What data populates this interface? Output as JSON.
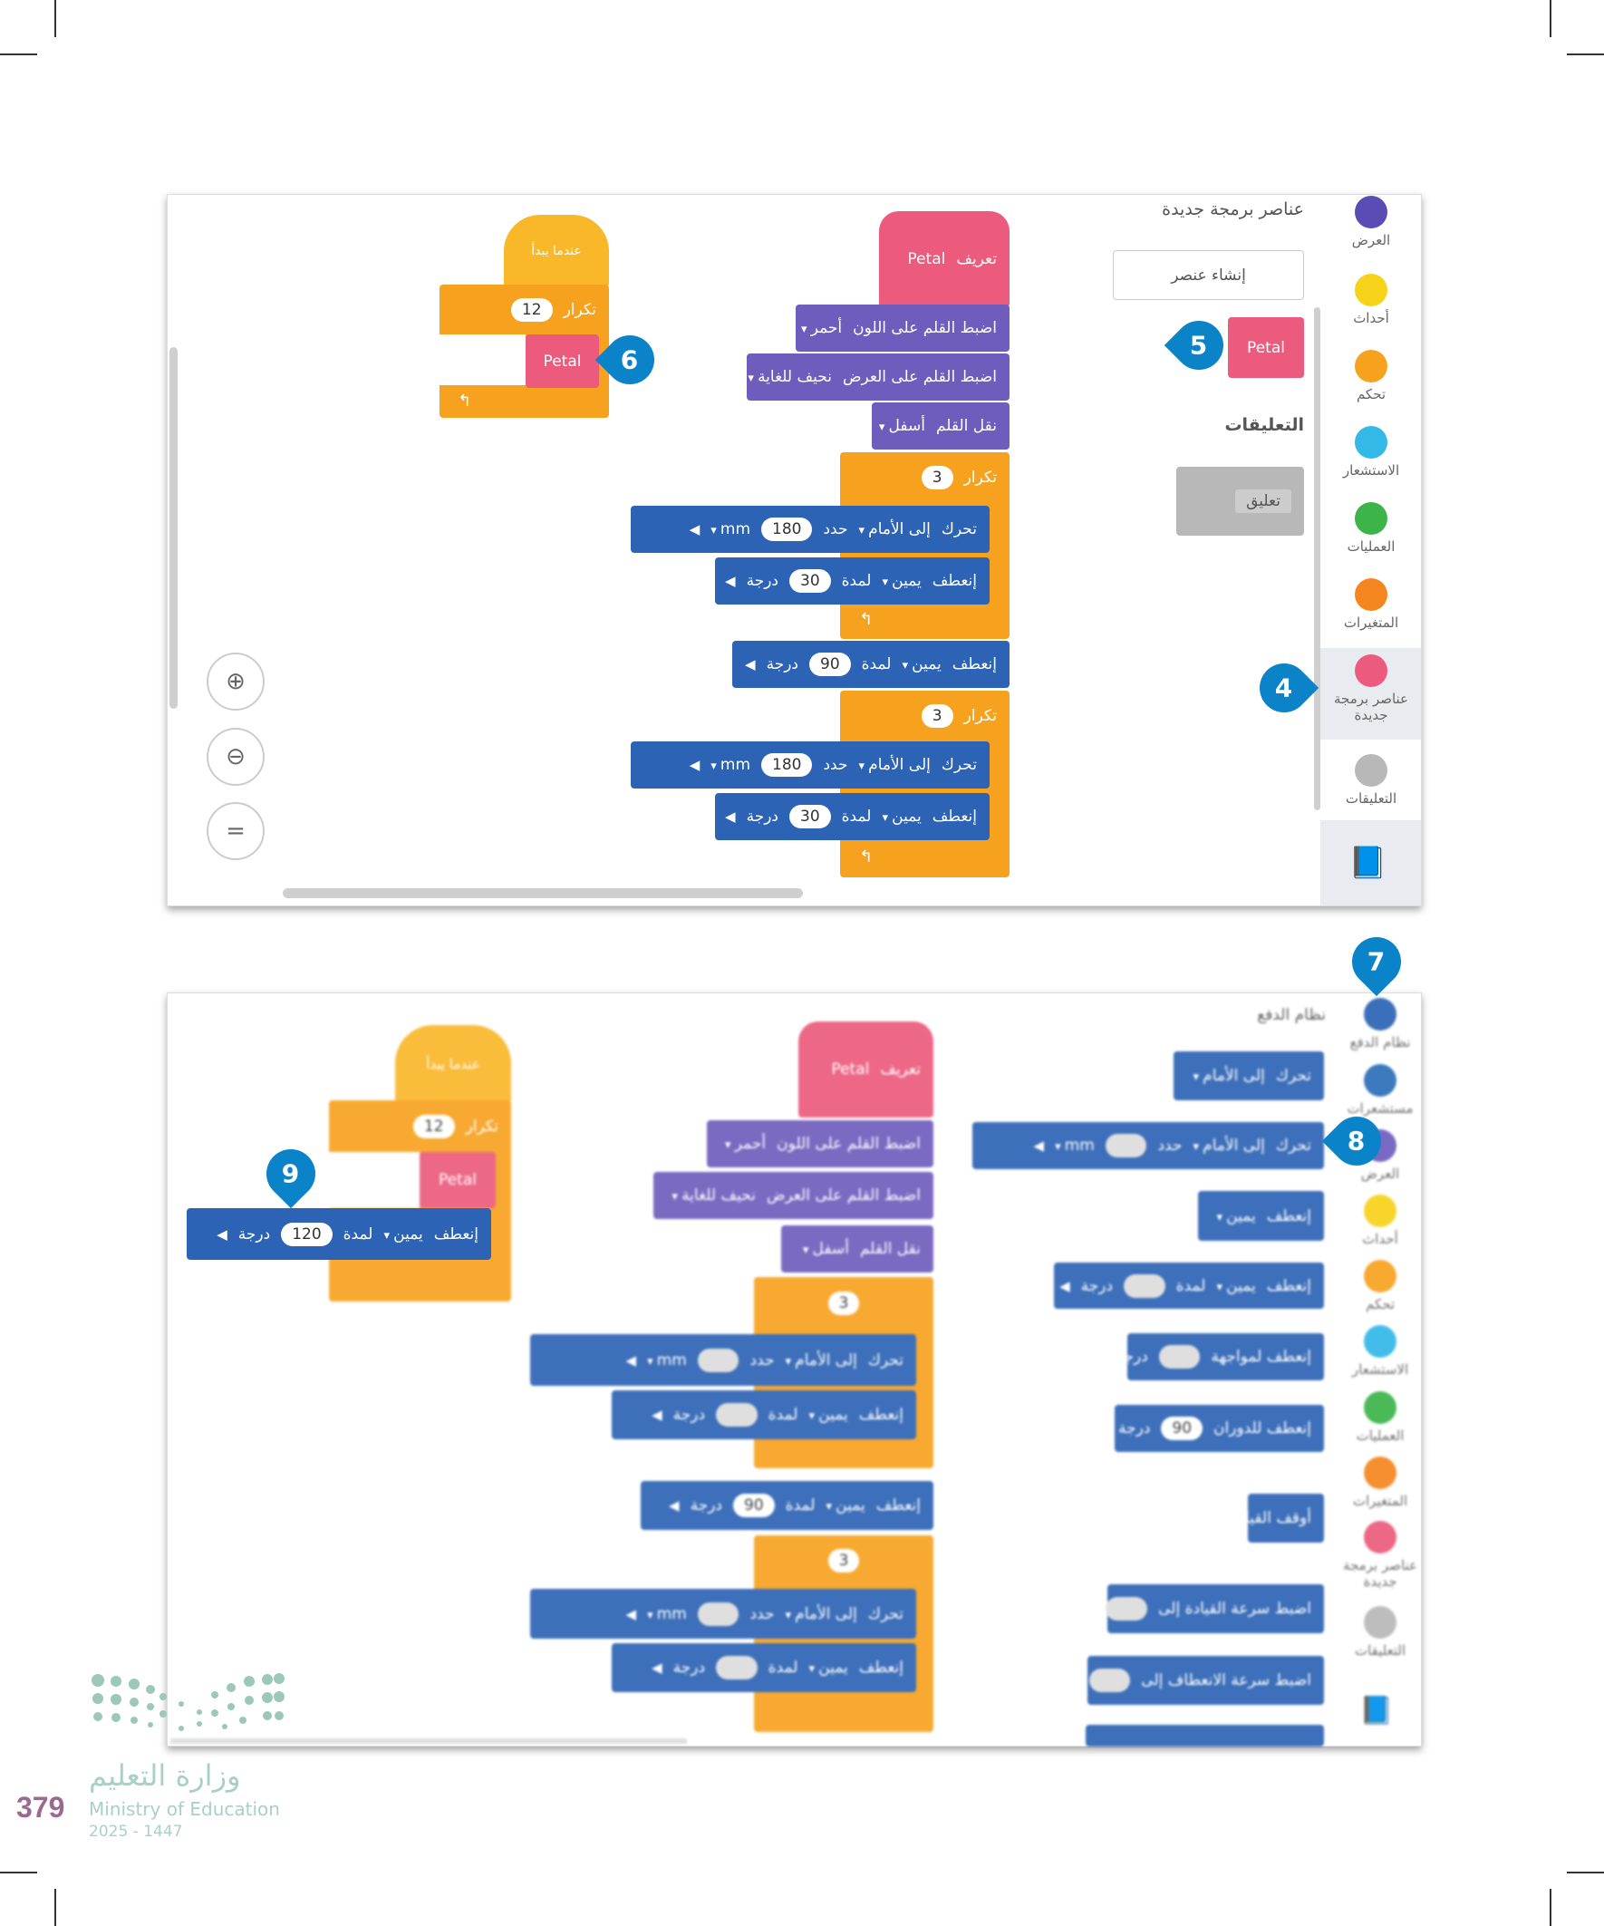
{
  "colors": {
    "pink": "#ec5b7d",
    "purple": "#6f5dbd",
    "blue": "#2c63b4",
    "orange": "#f7a21f",
    "badge": "#0a83c8"
  },
  "top": {
    "categories": [
      {
        "label": "العرض",
        "color": "#5b4bb5"
      },
      {
        "label": "أحداث",
        "color": "#f7d21a"
      },
      {
        "label": "تحكم",
        "color": "#f7a21f"
      },
      {
        "label": "الاستشعار",
        "color": "#33b8e8"
      },
      {
        "label": "العمليات",
        "color": "#3cb44a"
      },
      {
        "label": "المتغيرات",
        "color": "#f5861f"
      },
      {
        "label": "عناصر برمجة جديدة",
        "color": "#ec5b7d"
      },
      {
        "label": "التعليقات",
        "color": "#b8b8b8"
      }
    ],
    "palette_title": "عناصر برمجة جديدة",
    "create_button": "إنشاء عنصر",
    "petal_block": "Petal",
    "comments_title": "التعليقات",
    "comment_block": "تعليق",
    "start_hat": "عندما يبدأ",
    "repeat12": {
      "label": "تكرار",
      "value": "12"
    },
    "petal_call": "Petal",
    "define": [
      {
        "type": "label",
        "text": "تعريف"
      },
      {
        "type": "label",
        "text": "Petal"
      }
    ],
    "pen_color": [
      {
        "type": "label",
        "text": "اضبط القلم على اللون"
      },
      {
        "type": "dropdown",
        "text": "أحمر"
      }
    ],
    "pen_width": [
      {
        "type": "label",
        "text": "اضبط القلم على العرض"
      },
      {
        "type": "dropdown",
        "text": "نحيف للغاية"
      }
    ],
    "pen_down": [
      {
        "type": "label",
        "text": "نقل القلم"
      },
      {
        "type": "dropdown",
        "text": "أسفل"
      }
    ],
    "repeat_a": [
      {
        "type": "label",
        "text": "تكرار"
      },
      {
        "type": "input",
        "text": "3"
      }
    ],
    "move_a": [
      {
        "type": "label",
        "text": "تحرك"
      },
      {
        "type": "dropdown",
        "text": "إلى الأمام"
      },
      {
        "type": "label",
        "text": "حدد"
      },
      {
        "type": "input",
        "text": "180"
      },
      {
        "type": "dropdown",
        "text": "mm"
      },
      {
        "type": "collapse",
        "text": "◀"
      }
    ],
    "turn_a": [
      {
        "type": "label",
        "text": "إنعطف"
      },
      {
        "type": "dropdown",
        "text": "يمين"
      },
      {
        "type": "label",
        "text": "لمدة"
      },
      {
        "type": "input",
        "text": "30"
      },
      {
        "type": "label",
        "text": "درجة"
      },
      {
        "type": "collapse",
        "text": "◀"
      }
    ],
    "turn_90": [
      {
        "type": "label",
        "text": "إنعطف"
      },
      {
        "type": "dropdown",
        "text": "يمين"
      },
      {
        "type": "label",
        "text": "لمدة"
      },
      {
        "type": "input",
        "text": "90"
      },
      {
        "type": "label",
        "text": "درجة"
      },
      {
        "type": "collapse",
        "text": "◀"
      }
    ],
    "repeat_b": [
      {
        "type": "label",
        "text": "تكرار"
      },
      {
        "type": "input",
        "text": "3"
      }
    ],
    "move_b": [
      {
        "type": "label",
        "text": "تحرك"
      },
      {
        "type": "dropdown",
        "text": "إلى الأمام"
      },
      {
        "type": "label",
        "text": "حدد"
      },
      {
        "type": "input",
        "text": "180"
      },
      {
        "type": "dropdown",
        "text": "mm"
      },
      {
        "type": "collapse",
        "text": "◀"
      }
    ],
    "turn_b": [
      {
        "type": "label",
        "text": "إنعطف"
      },
      {
        "type": "dropdown",
        "text": "يمين"
      },
      {
        "type": "label",
        "text": "لمدة"
      },
      {
        "type": "input",
        "text": "30"
      },
      {
        "type": "label",
        "text": "درجة"
      },
      {
        "type": "collapse",
        "text": "◀"
      }
    ],
    "badges": {
      "b4": "4",
      "b5": "5",
      "b6": "6"
    }
  },
  "bottom": {
    "categories": [
      {
        "label": "نظام الدفع",
        "color": "#2c63b4"
      },
      {
        "label": "مستشعرات",
        "color": "#2c6fb8"
      },
      {
        "label": "العرض",
        "color": "#6f5dbd"
      },
      {
        "label": "أحداث",
        "color": "#f7d21a"
      },
      {
        "label": "تحكم",
        "color": "#f7a21f"
      },
      {
        "label": "الاستشعار",
        "color": "#33b8e8"
      },
      {
        "label": "العمليات",
        "color": "#3cb44a"
      },
      {
        "label": "المتغيرات",
        "color": "#f5861f"
      },
      {
        "label": "عناصر برمجة جديدة",
        "color": "#ec5b7d"
      },
      {
        "label": "التعليقات",
        "color": "#b8b8b8"
      }
    ],
    "palette_title": "نظام الدفع",
    "palette_blocks": [
      [
        {
          "type": "label",
          "text": "تحرك"
        },
        {
          "type": "dropdown",
          "text": "إلى الأمام"
        }
      ],
      [
        {
          "type": "label",
          "text": "تحرك"
        },
        {
          "type": "dropdown",
          "text": "إلى الأمام"
        },
        {
          "type": "label",
          "text": "حدد"
        },
        {
          "type": "input",
          "text": ""
        },
        {
          "type": "dropdown",
          "text": "mm"
        },
        {
          "type": "collapse",
          "text": "◀"
        }
      ],
      [
        {
          "type": "label",
          "text": "إنعطف"
        },
        {
          "type": "dropdown",
          "text": "يمين"
        }
      ],
      [
        {
          "type": "label",
          "text": "إنعطف"
        },
        {
          "type": "dropdown",
          "text": "يمين"
        },
        {
          "type": "label",
          "text": "لمدة"
        },
        {
          "type": "input",
          "text": ""
        },
        {
          "type": "label",
          "text": "درجة"
        },
        {
          "type": "collapse",
          "text": "◀"
        }
      ],
      [
        {
          "type": "label",
          "text": "إنعطف لمواجهة"
        },
        {
          "type": "input",
          "text": ""
        },
        {
          "type": "label",
          "text": "درجة"
        },
        {
          "type": "collapse",
          "text": "◀"
        }
      ],
      [
        {
          "type": "label",
          "text": "إنعطف للدوران"
        },
        {
          "type": "input",
          "text": "90"
        },
        {
          "type": "label",
          "text": "درجة"
        },
        {
          "type": "collapse",
          "text": "◀"
        }
      ],
      [
        {
          "type": "label",
          "text": "أوقف القيادة"
        }
      ],
      [
        {
          "type": "label",
          "text": "اضبط سرعة القيادة إلى"
        },
        {
          "type": "input",
          "text": ""
        },
        {
          "type": "label",
          "text": "%"
        }
      ],
      [
        {
          "type": "label",
          "text": "اضبط سرعة الانعطاف إلى"
        },
        {
          "type": "input",
          "text": ""
        },
        {
          "type": "label",
          "text": "%"
        }
      ],
      [
        {
          "type": "label",
          "text": ""
        }
      ]
    ],
    "start_hat": "عندما يبدأ",
    "repeat12": {
      "label": "تكرار",
      "value": "12"
    },
    "petal_call": "Petal",
    "turn_120": [
      {
        "type": "label",
        "text": "إنعطف"
      },
      {
        "type": "dropdown",
        "text": "يمين"
      },
      {
        "type": "label",
        "text": "لمدة"
      },
      {
        "type": "input",
        "text": "120"
      },
      {
        "type": "label",
        "text": "درجة"
      },
      {
        "type": "collapse",
        "text": "◀"
      }
    ],
    "define": [
      {
        "type": "label",
        "text": "تعريف"
      },
      {
        "type": "label",
        "text": "Petal"
      }
    ],
    "pen_color": [
      {
        "type": "label",
        "text": "اضبط القلم على اللون"
      },
      {
        "type": "dropdown",
        "text": "أحمر"
      }
    ],
    "pen_width": [
      {
        "type": "label",
        "text": "اضبط القلم على العرض"
      },
      {
        "type": "dropdown",
        "text": "نحيف للغاية"
      }
    ],
    "pen_down": [
      {
        "type": "label",
        "text": "نقل القلم"
      },
      {
        "type": "dropdown",
        "text": "أسفل"
      }
    ],
    "repeat_a": [
      {
        "type": "input",
        "text": "3"
      }
    ],
    "move_a": [
      {
        "type": "label",
        "text": "تحرك"
      },
      {
        "type": "dropdown",
        "text": "إلى الأمام"
      },
      {
        "type": "label",
        "text": "حدد"
      },
      {
        "type": "input",
        "text": ""
      },
      {
        "type": "dropdown",
        "text": "mm"
      },
      {
        "type": "collapse",
        "text": "◀"
      }
    ],
    "turn_a": [
      {
        "type": "label",
        "text": "إنعطف"
      },
      {
        "type": "dropdown",
        "text": "يمين"
      },
      {
        "type": "label",
        "text": "لمدة"
      },
      {
        "type": "input",
        "text": ""
      },
      {
        "type": "label",
        "text": "درجة"
      },
      {
        "type": "collapse",
        "text": "◀"
      }
    ],
    "turn_90": [
      {
        "type": "label",
        "text": "إنعطف"
      },
      {
        "type": "dropdown",
        "text": "يمين"
      },
      {
        "type": "label",
        "text": "لمدة"
      },
      {
        "type": "input",
        "text": "90"
      },
      {
        "type": "label",
        "text": "درجة"
      },
      {
        "type": "collapse",
        "text": "◀"
      }
    ],
    "repeat_b": [
      {
        "type": "input",
        "text": "3"
      }
    ],
    "move_b": [
      {
        "type": "label",
        "text": "تحرك"
      },
      {
        "type": "dropdown",
        "text": "إلى الأمام"
      },
      {
        "type": "label",
        "text": "حدد"
      },
      {
        "type": "input",
        "text": ""
      },
      {
        "type": "dropdown",
        "text": "mm"
      },
      {
        "type": "collapse",
        "text": "◀"
      }
    ],
    "turn_b": [
      {
        "type": "label",
        "text": "إنعطف"
      },
      {
        "type": "dropdown",
        "text": "يمين"
      },
      {
        "type": "label",
        "text": "لمدة"
      },
      {
        "type": "input",
        "text": ""
      },
      {
        "type": "label",
        "text": "درجة"
      },
      {
        "type": "collapse",
        "text": "◀"
      }
    ],
    "badges": {
      "b7": "7",
      "b8": "8",
      "b9": "9"
    }
  },
  "footer": {
    "ministry_ar": "وزارة التعليم",
    "page_number": "379",
    "ministry_en": "Ministry of Education",
    "year": "2025 - 1447"
  }
}
